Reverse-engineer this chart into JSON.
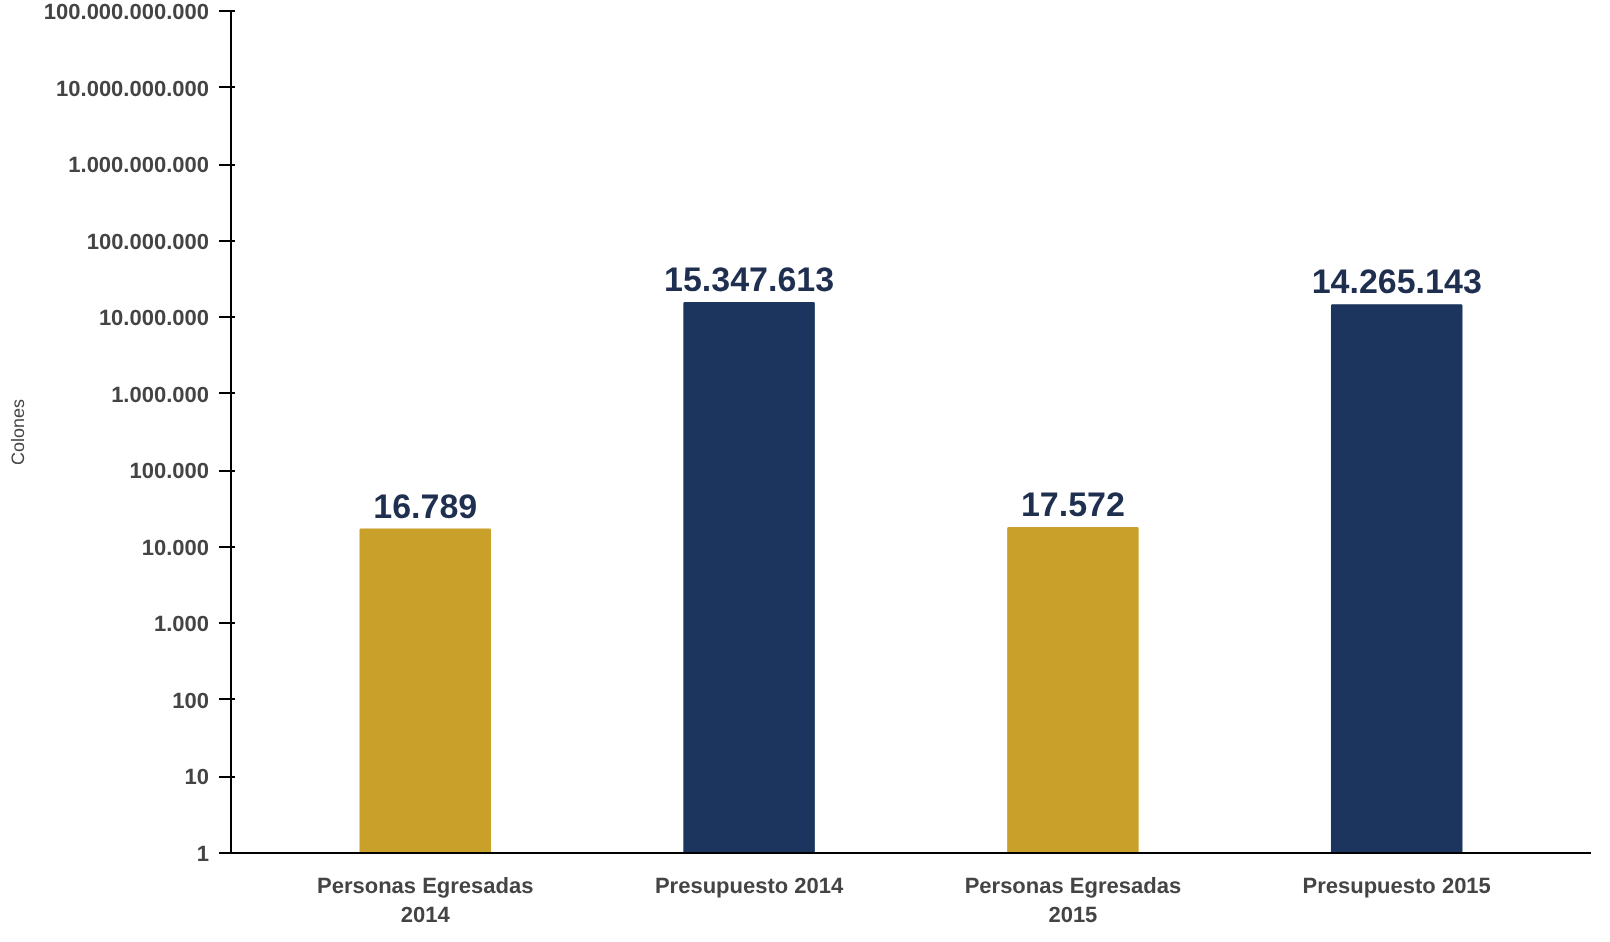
{
  "chart_data": {
    "type": "bar",
    "ylabel": "Colones",
    "log": true,
    "categories": [
      "Personas Egresadas 2014",
      "Presupuesto 2014",
      "Personas Egresadas 2015",
      "Presupuesto 2015"
    ],
    "values": [
      16789,
      15347613,
      17572,
      14265143
    ],
    "colors": [
      "#c9a02a",
      "#1c355e",
      "#c9a02a",
      "#1c355e"
    ],
    "value_labels": [
      "16.789",
      "15.347.613",
      "17.572",
      "14.265.143"
    ],
    "ylim": [
      1,
      100000000000
    ],
    "yticks": [
      1,
      10,
      100,
      {
        "value": 1000,
        "label": "1.000"
      },
      {
        "value": 10000,
        "label": "10.000"
      },
      {
        "value": 100000,
        "label": "100.000"
      },
      {
        "value": 1000000,
        "label": "1.000.000"
      },
      {
        "value": 10000000,
        "label": "10.000.000"
      },
      {
        "value": 100000000,
        "label": "100.000.000"
      },
      {
        "value": 1000000000,
        "label": "1.000.000.000"
      },
      {
        "value": 10000000000,
        "label": "10.000.000.000"
      },
      {
        "value": 100000000000,
        "label": "100.000.000.000"
      }
    ],
    "grid": false
  }
}
